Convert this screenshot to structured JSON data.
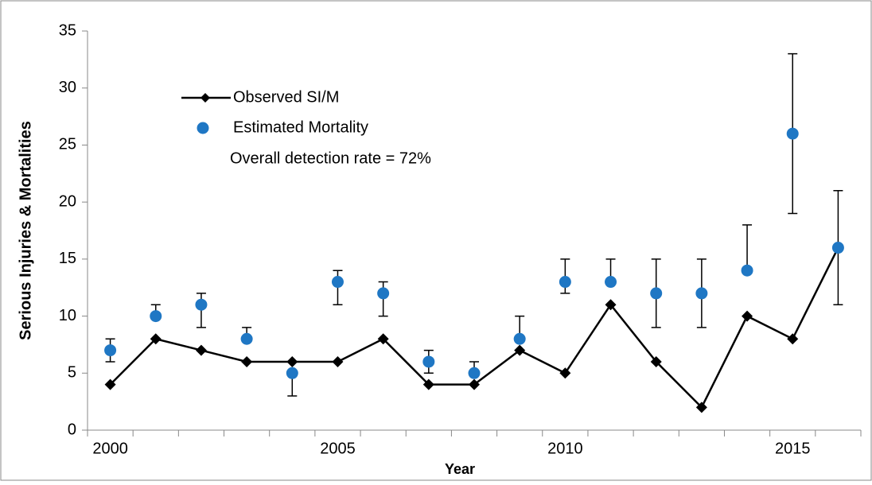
{
  "chart_data": {
    "type": "line",
    "x_label": "Year",
    "y_label": "Serious Injuries & Mortalities",
    "annotation": "Overall detection rate = 72%",
    "categories": [
      "2000",
      null,
      null,
      null,
      null,
      "2005",
      null,
      null,
      null,
      null,
      "2010",
      null,
      null,
      null,
      null,
      "2015",
      null
    ],
    "series": [
      {
        "name": "Observed SI/M",
        "color": "#000000",
        "marker": "diamond",
        "line": true,
        "values": [
          4,
          8,
          7,
          6,
          6,
          6,
          8,
          4,
          4,
          7,
          5,
          11,
          6,
          2,
          10,
          8,
          16
        ]
      },
      {
        "name": "Estimated Mortality",
        "color": "#1f77c4",
        "marker": "circle",
        "line": false,
        "values": [
          7,
          10,
          11,
          8,
          5,
          13,
          12,
          6,
          5,
          8,
          13,
          13,
          12,
          12,
          14,
          26,
          16
        ],
        "lower": [
          6,
          10,
          9,
          8,
          3,
          11,
          10,
          5,
          5,
          8,
          12,
          13,
          9,
          9,
          14,
          19,
          11
        ],
        "upper": [
          8,
          11,
          12,
          9,
          5,
          14,
          13,
          7,
          6,
          10,
          15,
          15,
          15,
          15,
          18,
          33,
          21
        ]
      }
    ],
    "ylim": [
      0,
      35
    ],
    "yticks": [
      0,
      5,
      10,
      15,
      20,
      25,
      30,
      35
    ],
    "grid": false,
    "legend": "upper left"
  }
}
